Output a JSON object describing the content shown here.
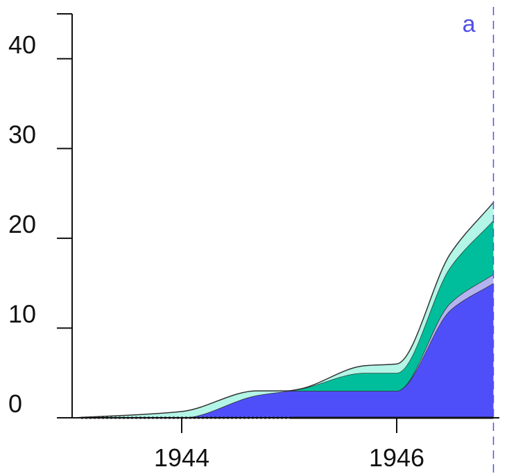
{
  "chart_data": {
    "type": "area",
    "stacked": true,
    "title": "",
    "xlabel": "",
    "ylabel": "",
    "xlim": [
      1943.0,
      1946.9
    ],
    "ylim": [
      0,
      45
    ],
    "x_ticks": [
      {
        "value": 1944,
        "label": "1944"
      },
      {
        "value": 1946,
        "label": "1946"
      }
    ],
    "y_ticks": [
      {
        "value": 0,
        "label": "0"
      },
      {
        "value": 10,
        "label": "10"
      },
      {
        "value": 20,
        "label": "20"
      },
      {
        "value": 30,
        "label": "30"
      },
      {
        "value": 40,
        "label": "40"
      }
    ],
    "grid": false,
    "legend": "none",
    "x": [
      1943.0,
      1944.0,
      1944.7,
      1945.0,
      1945.1,
      1945.7,
      1946.0,
      1946.5,
      1946.9
    ],
    "series": [
      {
        "color": "#4f4ffa",
        "values": [
          0,
          0,
          2.5,
          3,
          3,
          3,
          3,
          12,
          15
        ]
      },
      {
        "color": "#b3b3f0",
        "values": [
          0,
          0,
          0,
          0,
          0,
          0,
          0,
          0.8,
          1
        ]
      },
      {
        "color": "#00be9b",
        "values": [
          0,
          0,
          0,
          0,
          0.2,
          2,
          2,
          4,
          6
        ]
      },
      {
        "color": "#b3f5e6",
        "values": [
          0,
          0.7,
          0.5,
          0,
          0,
          0.8,
          1,
          1.5,
          2
        ]
      }
    ],
    "baseline_segments": [
      {
        "from": 1943.0,
        "to": 1945.0,
        "style": "dotted"
      },
      {
        "from": 1945.0,
        "to": 1946.9,
        "style": "solid"
      }
    ],
    "annotations": [
      {
        "x": 1946.9,
        "label": "a",
        "style": "dashed",
        "color": "#5050e6"
      }
    ]
  }
}
